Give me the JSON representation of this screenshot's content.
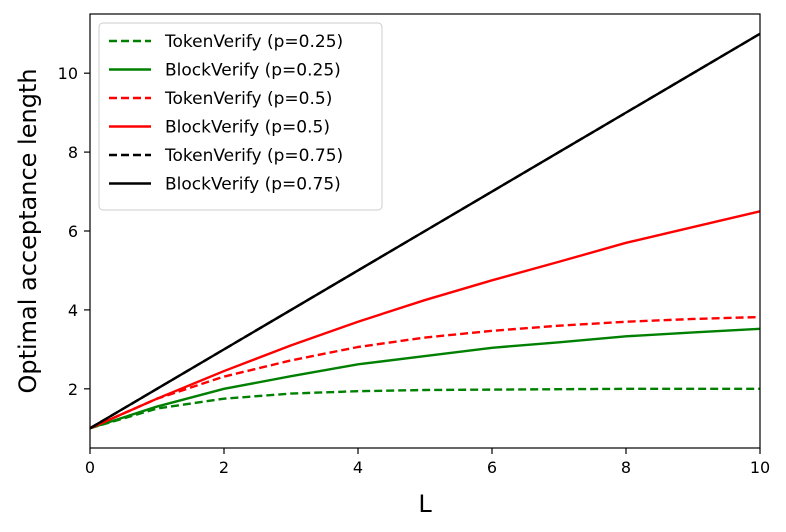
{
  "chart_data": {
    "type": "line",
    "title": "",
    "xlabel": "L",
    "ylabel": "Optimal acceptance length",
    "xlim": [
      0,
      10
    ],
    "ylim": [
      0.5,
      11.5
    ],
    "xticks": [
      0,
      2,
      4,
      6,
      8,
      10
    ],
    "yticks": [
      2,
      4,
      6,
      8,
      10
    ],
    "grid": false,
    "legend_position": "top-left",
    "series": [
      {
        "name": "TokenVerify (p=0.25)",
        "color": "#008000",
        "dash": "dashed",
        "x": [
          0,
          1,
          2,
          3,
          4,
          5,
          6,
          7,
          8,
          9,
          10
        ],
        "y": [
          1,
          1.5,
          1.75,
          1.88,
          1.94,
          1.97,
          1.98,
          1.99,
          2.0,
          2.0,
          2.0
        ]
      },
      {
        "name": "BlockVerify (p=0.25)",
        "color": "#008000",
        "dash": "solid",
        "x": [
          0,
          1,
          2,
          3,
          4,
          5,
          6,
          7,
          8,
          9,
          10
        ],
        "y": [
          1,
          1.55,
          2.0,
          2.32,
          2.62,
          2.83,
          3.04,
          3.18,
          3.33,
          3.43,
          3.52
        ]
      },
      {
        "name": "TokenVerify (p=0.5)",
        "color": "#ff0000",
        "dash": "dashed",
        "x": [
          0,
          1,
          2,
          3,
          4,
          5,
          6,
          7,
          8,
          9,
          10
        ],
        "y": [
          1,
          1.75,
          2.31,
          2.72,
          3.06,
          3.3,
          3.47,
          3.6,
          3.7,
          3.77,
          3.82
        ]
      },
      {
        "name": "BlockVerify (p=0.5)",
        "color": "#ff0000",
        "dash": "solid",
        "x": [
          0,
          1,
          2,
          3,
          4,
          5,
          6,
          7,
          8,
          9,
          10
        ],
        "y": [
          1,
          1.75,
          2.45,
          3.1,
          3.7,
          4.25,
          4.75,
          5.22,
          5.7,
          6.1,
          6.5
        ]
      },
      {
        "name": "TokenVerify (p=0.75)",
        "color": "#000000",
        "dash": "dashed",
        "x": [
          0,
          1,
          2,
          3,
          4,
          5,
          6,
          7,
          8,
          9,
          10
        ],
        "y": [
          1,
          2,
          3,
          4,
          5,
          6,
          7,
          8,
          9,
          10,
          11
        ]
      },
      {
        "name": "BlockVerify (p=0.75)",
        "color": "#000000",
        "dash": "solid",
        "x": [
          0,
          1,
          2,
          3,
          4,
          5,
          6,
          7,
          8,
          9,
          10
        ],
        "y": [
          1,
          2,
          3,
          4,
          5,
          6,
          7,
          8,
          9,
          10,
          11
        ]
      }
    ]
  }
}
